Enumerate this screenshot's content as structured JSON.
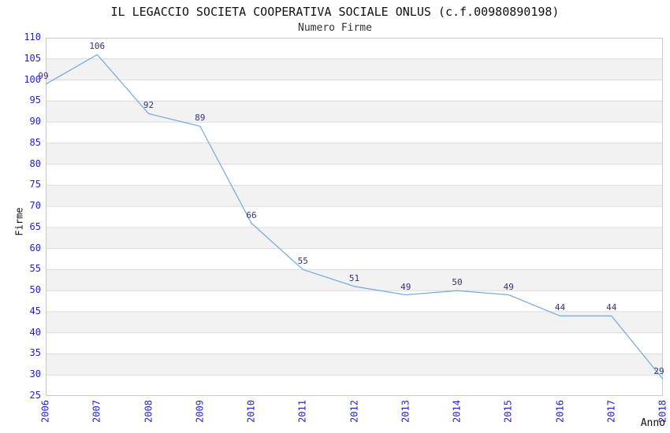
{
  "chart_data": {
    "type": "line",
    "title": "IL LEGACCIO SOCIETA COOPERATIVA SOCIALE ONLUS (c.f.00980890198)",
    "subtitle": "Numero Firme",
    "xlabel": "Anno",
    "ylabel": "Firme",
    "categories": [
      "2006",
      "2007",
      "2008",
      "2009",
      "2010",
      "2011",
      "2012",
      "2013",
      "2014",
      "2015",
      "2016",
      "2017",
      "2018"
    ],
    "values": [
      99,
      106,
      92,
      89,
      66,
      55,
      51,
      49,
      50,
      49,
      44,
      44,
      29
    ],
    "ylim": [
      25,
      110
    ],
    "y_ticks": [
      110,
      105,
      100,
      95,
      90,
      85,
      80,
      75,
      70,
      65,
      60,
      55,
      50,
      45,
      40,
      35,
      30,
      25
    ],
    "grid": true,
    "legend": "none",
    "band_fill_alternating": true,
    "colors": {
      "line": "#79aee3",
      "axis_tick_label": "#2222cc",
      "data_label": "#333377",
      "band": "#f2f2f2",
      "gridline": "#dcdcdc",
      "plot_border": "#c8c8c8",
      "title_text": "#111111",
      "background": "#ffffff"
    }
  }
}
